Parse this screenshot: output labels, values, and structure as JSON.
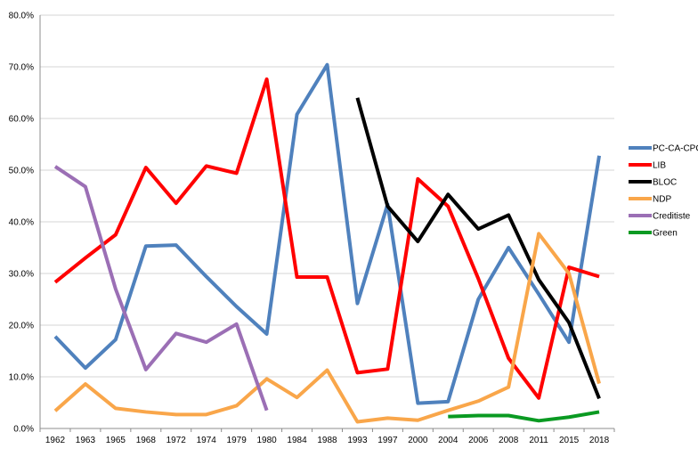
{
  "chart_data": {
    "type": "line",
    "categories": [
      "1962",
      "1963",
      "1965",
      "1968",
      "1972",
      "1974",
      "1979",
      "1980",
      "1984",
      "1988",
      "1993",
      "1997",
      "2000",
      "2004",
      "2006",
      "2008",
      "2011",
      "2015",
      "2018"
    ],
    "y_ticks": [
      "0.0%",
      "10.0%",
      "20.0%",
      "30.0%",
      "40.0%",
      "50.0%",
      "60.0%",
      "70.0%",
      "80.0%"
    ],
    "ylim": [
      0,
      80
    ],
    "grid": true,
    "legend_position": "right",
    "series": [
      {
        "name": "PC-CA-CPC",
        "color": "#4f81bd",
        "values": [
          17.8,
          11.7,
          17.2,
          35.3,
          35.5,
          29.4,
          23.6,
          18.3,
          60.8,
          70.4,
          24.2,
          43.4,
          4.9,
          5.2,
          25,
          35,
          26,
          16.7,
          52.8
        ]
      },
      {
        "name": "LIB",
        "color": "#ff0000",
        "values": [
          28.3,
          33,
          37.5,
          50.5,
          43.6,
          50.8,
          49.4,
          67.6,
          29.3,
          29.3,
          10.8,
          11.5,
          48.3,
          43,
          29,
          13.6,
          5.9,
          31.2,
          29.4
        ]
      },
      {
        "name": "BLOC",
        "color": "#000000",
        "values": [
          null,
          null,
          null,
          null,
          null,
          null,
          null,
          null,
          null,
          null,
          64,
          43,
          36.2,
          45.3,
          38.6,
          41.3,
          28.8,
          20.5,
          5.8
        ]
      },
      {
        "name": "NDP",
        "color": "#f9a64a",
        "values": [
          3.4,
          8.6,
          3.9,
          3.2,
          2.7,
          2.7,
          4.4,
          9.6,
          6,
          11.3,
          1.3,
          2,
          1.6,
          3.5,
          5.3,
          8,
          37.7,
          30,
          8.7
        ]
      },
      {
        "name": "Creditiste",
        "color": "#9b6fb5",
        "values": [
          50.7,
          46.8,
          27,
          11.4,
          18.4,
          16.7,
          20.2,
          3.5,
          null,
          null,
          null,
          null,
          null,
          null,
          null,
          null,
          null,
          null,
          null
        ]
      },
      {
        "name": "Green",
        "color": "#0a9a22",
        "values": [
          null,
          null,
          null,
          null,
          null,
          null,
          null,
          null,
          null,
          null,
          null,
          null,
          null,
          2.3,
          2.5,
          2.5,
          1.5,
          2.2,
          3.2
        ]
      }
    ]
  }
}
